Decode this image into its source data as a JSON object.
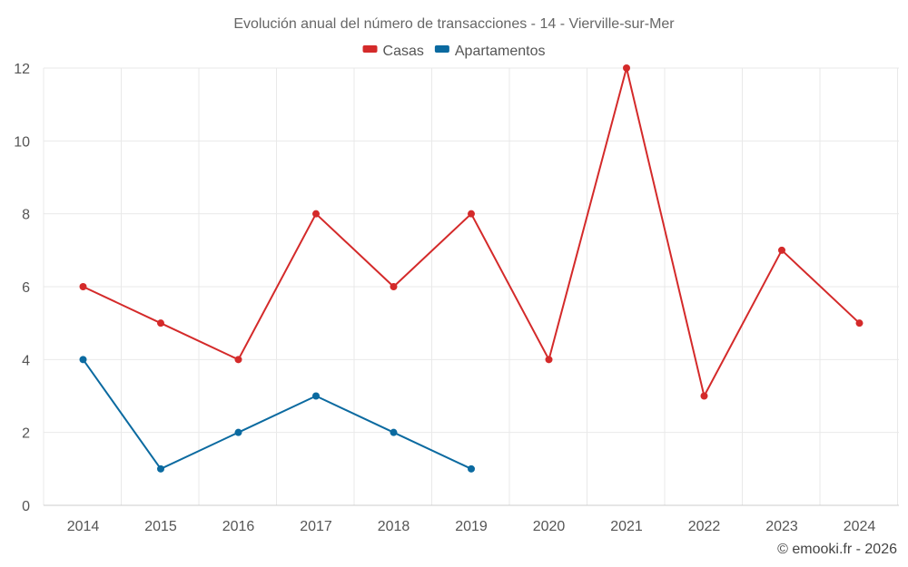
{
  "chart_data": {
    "type": "line",
    "title": "Evolución anual del número de transacciones - 14 - Vierville-sur-Mer",
    "xlabel": "",
    "ylabel": "",
    "categories": [
      "2014",
      "2015",
      "2016",
      "2017",
      "2018",
      "2019",
      "2020",
      "2021",
      "2022",
      "2023",
      "2024"
    ],
    "ylim": [
      0,
      12
    ],
    "yticks": [
      0,
      2,
      4,
      6,
      8,
      10,
      12
    ],
    "grid": true,
    "legend_position": "top-center",
    "series": [
      {
        "name": "Casas",
        "color": "#d42a2a",
        "values": [
          6,
          5,
          4,
          8,
          6,
          8,
          4,
          12,
          3,
          7,
          5
        ]
      },
      {
        "name": "Apartamentos",
        "color": "#0b6aa0",
        "values": [
          4,
          1,
          2,
          3,
          2,
          1,
          null,
          null,
          null,
          null,
          null
        ]
      }
    ]
  },
  "credit": "© emooki.fr - 2026"
}
